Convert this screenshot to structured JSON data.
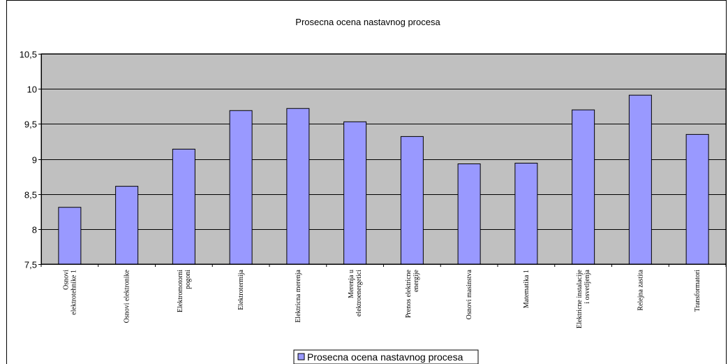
{
  "chart_data": {
    "type": "bar",
    "title": "Prosecna ocena nastavnog procesa",
    "xlabel": "",
    "ylabel": "",
    "ylim": [
      7.5,
      10.5
    ],
    "yticks": [
      "10,5",
      "10",
      "9,5",
      "9",
      "8,5",
      "8",
      "7,5"
    ],
    "ytick_values": [
      10.5,
      10,
      9.5,
      9,
      8.5,
      8,
      7.5
    ],
    "grid": true,
    "legend_position": "bottom",
    "categories": [
      [
        "Osnovi",
        "elektrotehnike 1"
      ],
      [
        "Osnovi elektronike"
      ],
      [
        "Elektromotorni",
        "pogoni"
      ],
      [
        "Elektrotermija"
      ],
      [
        "Elektricna merenja"
      ],
      [
        "Merenja u",
        "elektroenergetici"
      ],
      [
        "Prenos elektricne",
        "energije"
      ],
      [
        "Osnovi masinstva"
      ],
      [
        "Matematika 1"
      ],
      [
        "Elektricne instalacije",
        "i osvetljenja"
      ],
      [
        "Relejna zastita"
      ],
      [
        "Transformatori"
      ]
    ],
    "series": [
      {
        "name": "Prosecna ocena nastavnog procesa",
        "values": [
          8.31,
          8.61,
          9.14,
          9.69,
          9.72,
          9.53,
          9.32,
          8.93,
          8.94,
          9.7,
          9.91,
          9.35
        ]
      }
    ],
    "colors": {
      "bar_fill": "#9999ff",
      "bar_stroke": "#000000",
      "plot_bg": "#c0c0c0",
      "grid": "#000000"
    }
  }
}
